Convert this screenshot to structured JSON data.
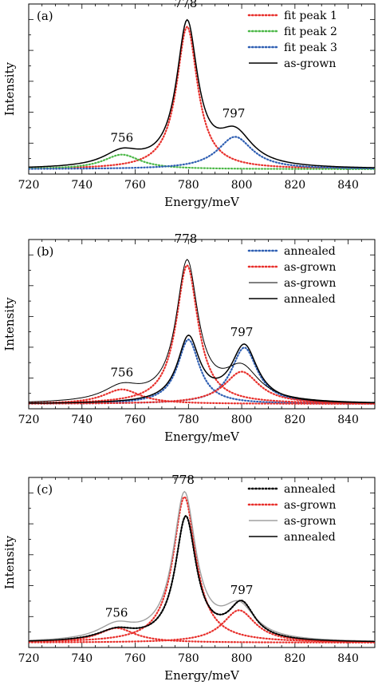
{
  "chart_data": [
    {
      "type": "line",
      "panel_label": "(a)",
      "xlabel": "Energy/meV",
      "ylabel": "Intensity",
      "xlim": [
        720,
        850
      ],
      "xticks": [
        720,
        740,
        760,
        780,
        800,
        820,
        840
      ],
      "ylim": [
        0,
        1.05
      ],
      "legend_position": "top-right",
      "peak_labels": [
        {
          "text": "756",
          "x": 755,
          "y": 0.17
        },
        {
          "text": "778",
          "x": 779,
          "y": 1.0
        },
        {
          "text": "797",
          "x": 797,
          "y": 0.32
        }
      ],
      "series": [
        {
          "name": "fit peak 1",
          "style": "dotted",
          "color": "#e8302c",
          "peaks": [
            {
              "c": 779.5,
              "a": 0.88,
              "w": 4.8
            }
          ]
        },
        {
          "name": "fit peak 2",
          "style": "dotted",
          "color": "#4cb848",
          "peaks": [
            {
              "c": 755,
              "a": 0.09,
              "w": 8.5
            }
          ]
        },
        {
          "name": "fit peak 3",
          "style": "dotted",
          "color": "#2f5fb3",
          "peaks": [
            {
              "c": 797.5,
              "a": 0.2,
              "w": 8.0
            }
          ]
        },
        {
          "name": "as-grown",
          "style": "solid",
          "color": "#000000",
          "peaks": [
            {
              "c": 755,
              "a": 0.09,
              "w": 8.5
            },
            {
              "c": 779.5,
              "a": 0.88,
              "w": 4.8
            },
            {
              "c": 797.5,
              "a": 0.2,
              "w": 8.0
            }
          ]
        }
      ]
    },
    {
      "type": "line",
      "panel_label": "(b)",
      "xlabel": "Energy/meV",
      "ylabel": "Intensity",
      "xlim": [
        720,
        850
      ],
      "xticks": [
        720,
        740,
        760,
        780,
        800,
        820,
        840
      ],
      "ylim": [
        0,
        1.05
      ],
      "legend_position": "top-right",
      "peak_labels": [
        {
          "text": "756",
          "x": 755,
          "y": 0.17
        },
        {
          "text": "778",
          "x": 779,
          "y": 1.0
        },
        {
          "text": "797",
          "x": 800,
          "y": 0.42
        }
      ],
      "series": [
        {
          "name": "annealed",
          "style": "dotted",
          "color": "#2f5fb3",
          "per_peak": true,
          "peaks": [
            {
              "c": 780,
              "a": 0.4,
              "w": 5.0
            },
            {
              "c": 801,
              "a": 0.35,
              "w": 6.0
            }
          ]
        },
        {
          "name": "as-grown",
          "style": "dotted",
          "color": "#e8302c",
          "per_peak": true,
          "peaks": [
            {
              "c": 755,
              "a": 0.09,
              "w": 8.5
            },
            {
              "c": 779.5,
              "a": 0.86,
              "w": 5.0
            },
            {
              "c": 800,
              "a": 0.2,
              "w": 8.0
            }
          ]
        },
        {
          "name": "as-grown",
          "style": "solid-thin",
          "color": "#000000",
          "peaks": [
            {
              "c": 755,
              "a": 0.09,
              "w": 8.5
            },
            {
              "c": 779.5,
              "a": 0.86,
              "w": 5.0
            },
            {
              "c": 800,
              "a": 0.2,
              "w": 8.0
            }
          ]
        },
        {
          "name": "annealed",
          "style": "solid",
          "color": "#000000",
          "peaks": [
            {
              "c": 780,
              "a": 0.4,
              "w": 5.0
            },
            {
              "c": 801,
              "a": 0.35,
              "w": 6.0
            }
          ]
        }
      ]
    },
    {
      "type": "line",
      "panel_label": "(c)",
      "xlabel": "Energy/meV",
      "ylabel": "Intensity",
      "xlim": [
        720,
        850
      ],
      "xticks": [
        720,
        740,
        760,
        780,
        800,
        820,
        840
      ],
      "ylim": [
        0,
        1.05
      ],
      "legend_position": "top-right",
      "peak_labels": [
        {
          "text": "756",
          "x": 753,
          "y": 0.16
        },
        {
          "text": "778",
          "x": 778,
          "y": 0.98
        },
        {
          "text": "797",
          "x": 800,
          "y": 0.3
        }
      ],
      "series": [
        {
          "name": "annealed",
          "style": "dotted",
          "color": "#000000",
          "peaks": [
            {
              "c": 753,
              "a": 0.065,
              "w": 8.5
            },
            {
              "c": 779,
              "a": 0.76,
              "w": 4.8
            },
            {
              "c": 800,
              "a": 0.22,
              "w": 6.0
            }
          ]
        },
        {
          "name": "as-grown",
          "style": "dotted",
          "color": "#e8302c",
          "per_peak": true,
          "peaks": [
            {
              "c": 753,
              "a": 0.09,
              "w": 8.5
            },
            {
              "c": 778.5,
              "a": 0.9,
              "w": 5.2
            },
            {
              "c": 799,
              "a": 0.2,
              "w": 7.5
            }
          ]
        },
        {
          "name": "as-grown",
          "style": "solid-grey",
          "color": "#a0a0a0",
          "peaks": [
            {
              "c": 753,
              "a": 0.09,
              "w": 8.5
            },
            {
              "c": 778.5,
              "a": 0.9,
              "w": 5.2
            },
            {
              "c": 799,
              "a": 0.2,
              "w": 7.5
            }
          ]
        },
        {
          "name": "annealed",
          "style": "solid",
          "color": "#000000",
          "peaks": [
            {
              "c": 753,
              "a": 0.065,
              "w": 8.5
            },
            {
              "c": 779,
              "a": 0.76,
              "w": 4.8
            },
            {
              "c": 800,
              "a": 0.22,
              "w": 6.0
            }
          ]
        }
      ]
    }
  ]
}
